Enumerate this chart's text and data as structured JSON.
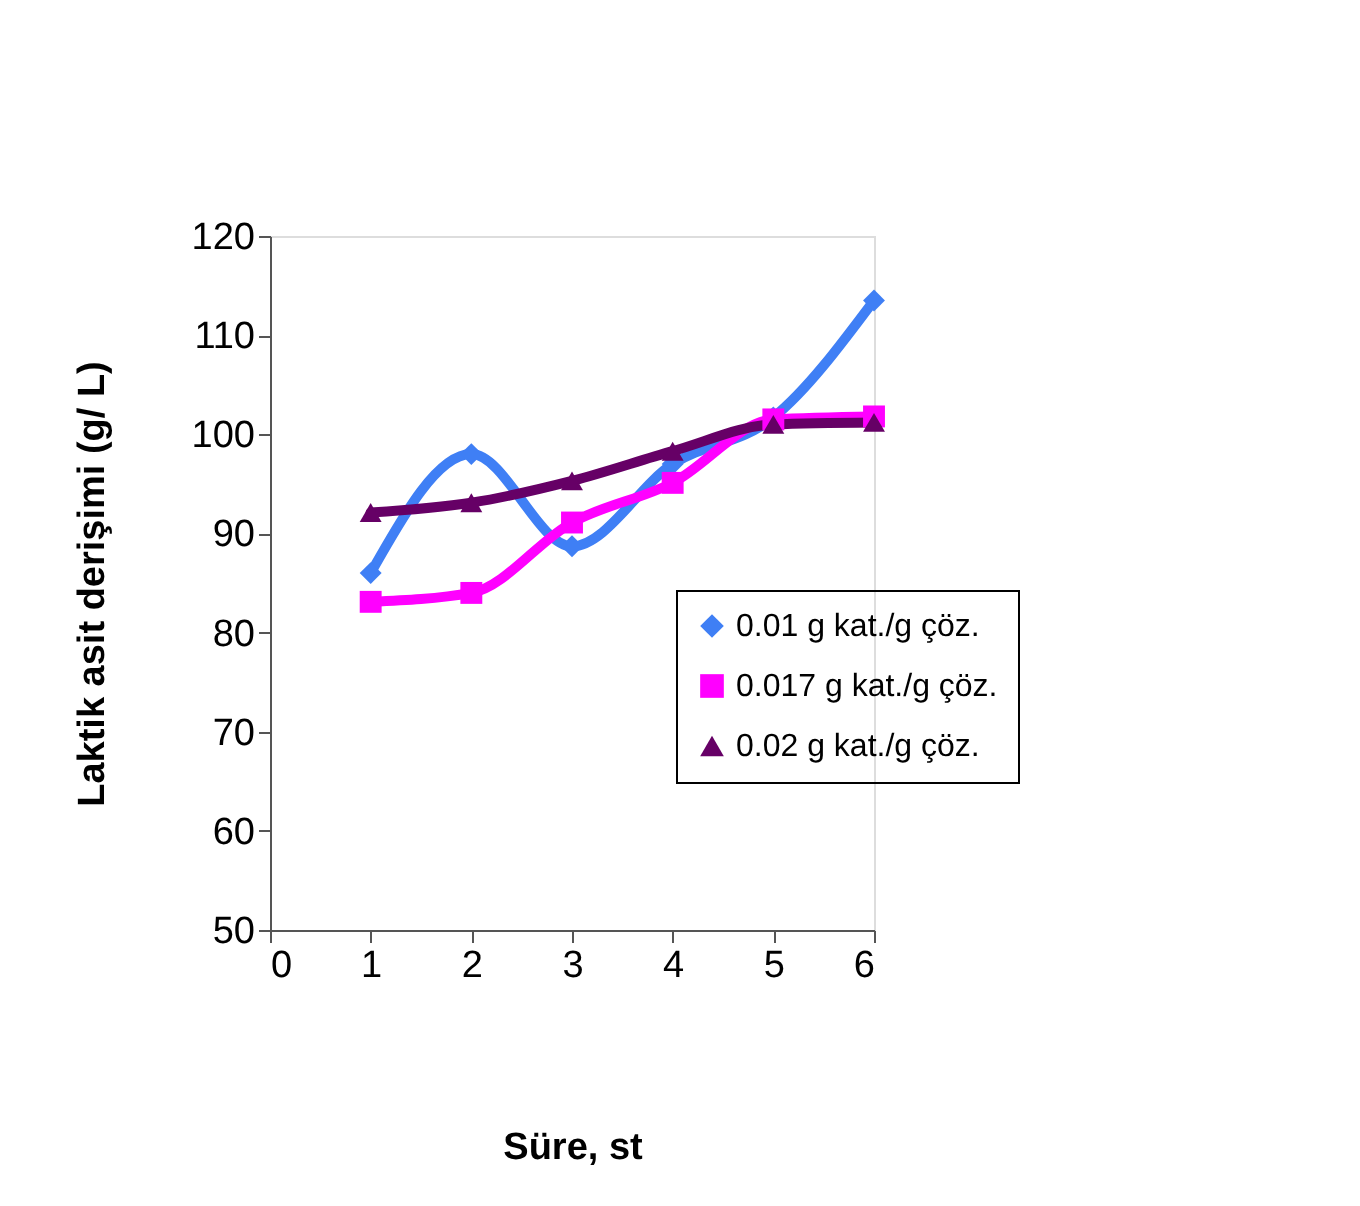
{
  "chart_data": {
    "type": "line",
    "xlabel": "Süre, st",
    "ylabel": "Laktik asit  derişimi (g/ L)",
    "x": [
      1,
      2,
      3,
      4,
      5,
      6
    ],
    "xlim": [
      0,
      6
    ],
    "xticks": [
      0,
      1,
      2,
      3,
      4,
      5,
      6
    ],
    "ylim": [
      50,
      120
    ],
    "yticks": [
      50,
      60,
      70,
      80,
      90,
      100,
      110,
      120
    ],
    "grid": false,
    "legend": "right",
    "line_style": "solid",
    "series": [
      {
        "name": "0.01 g kat./g çöz.",
        "color": "#3f7ff5",
        "marker": "diamond",
        "values": [
          86,
          98,
          88.7,
          97,
          101.7,
          113.5
        ]
      },
      {
        "name": "0.017 g kat./g çöz.",
        "color": "#ff00ff",
        "marker": "square",
        "values": [
          83.1,
          84,
          91.1,
          95.1,
          101.5,
          101.8
        ]
      },
      {
        "name": "0.02 g kat./g çöz.",
        "color": "#660066",
        "marker": "triangle",
        "values": [
          92.1,
          93.1,
          95.3,
          98.3,
          101,
          101.2
        ]
      }
    ]
  }
}
